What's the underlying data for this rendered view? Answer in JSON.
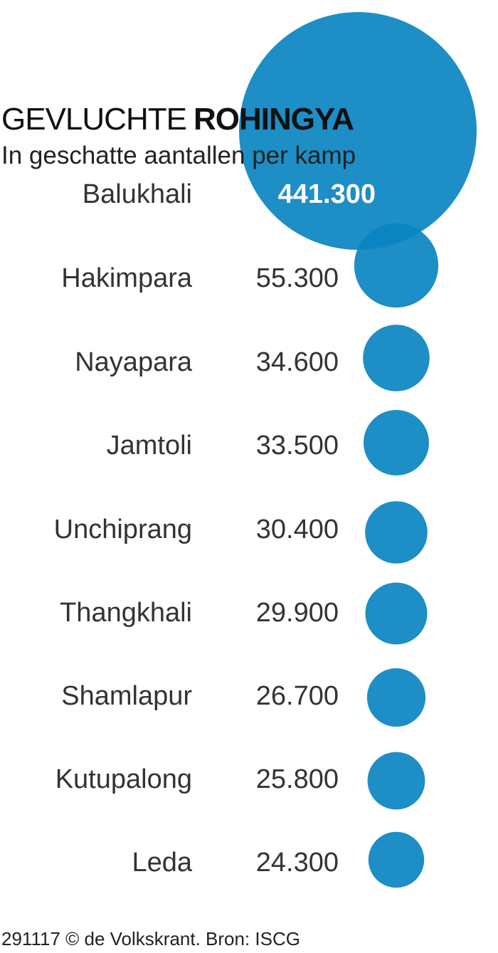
{
  "chart_data": {
    "type": "bubble",
    "title_light": "GEVLUCHTE",
    "title_bold": "ROHINGYA",
    "subtitle": "In geschatte aantallen per kamp",
    "categories": [
      "Balukhali",
      "Hakimpara",
      "Nayapara",
      "Jamtoli",
      "Unchiprang",
      "Thangkhali",
      "Shamlapur",
      "Kutupalong",
      "Leda"
    ],
    "values": [
      441300,
      55300,
      34600,
      33500,
      30400,
      29900,
      26700,
      25800,
      24300
    ],
    "value_labels": [
      "441.300",
      "55.300",
      "34.600",
      "33.500",
      "30.400",
      "29.900",
      "26.700",
      "25.800",
      "24.300"
    ],
    "color": "#0a84c1",
    "footer": "291117 © de Volkskrant. Bron: ISCG"
  }
}
